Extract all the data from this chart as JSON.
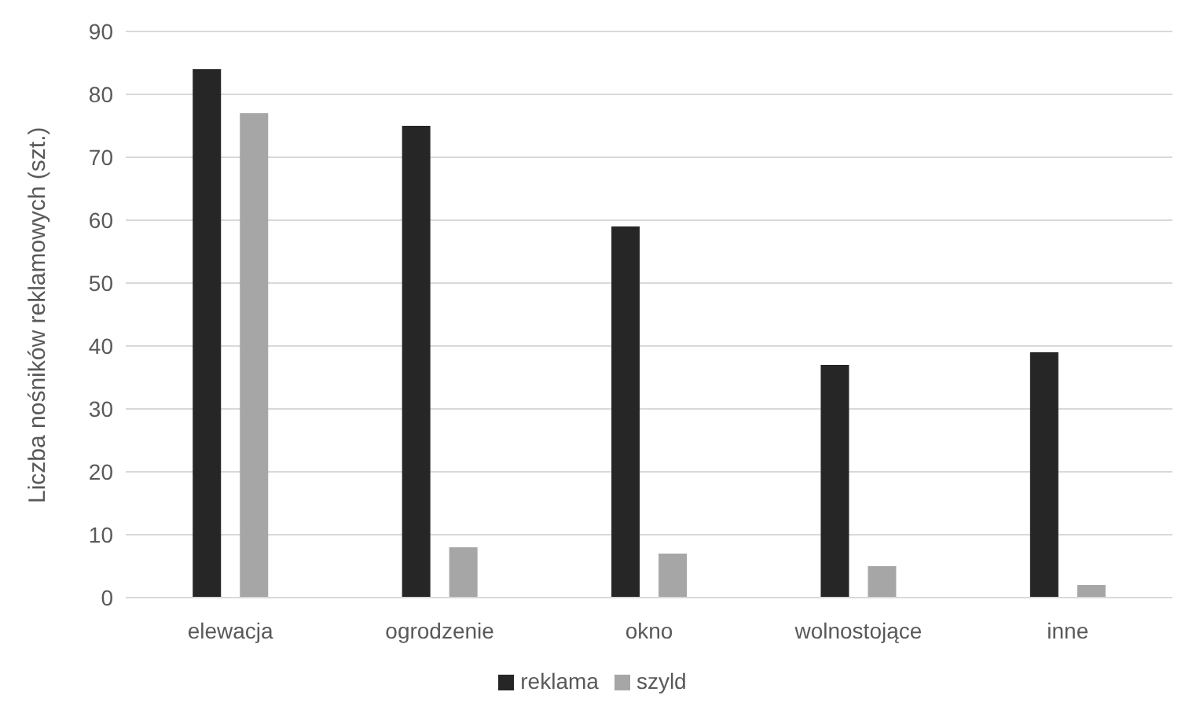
{
  "chart_data": {
    "type": "bar",
    "ylabel": "Liczba nośników reklamowych (szt.)",
    "categories": [
      "elewacja",
      "ogrodzenie",
      "okno",
      "wolnostojące",
      "inne"
    ],
    "series": [
      {
        "name": "reklama",
        "color": "#262626",
        "values": [
          84,
          75,
          59,
          37,
          39
        ]
      },
      {
        "name": "szyld",
        "color": "#a6a6a6",
        "values": [
          77,
          8,
          7,
          5,
          2
        ]
      }
    ],
    "ylim": [
      0,
      90
    ],
    "yticks": [
      0,
      10,
      20,
      30,
      40,
      50,
      60,
      70,
      80,
      90
    ],
    "grid": "y",
    "legend": "bottom"
  }
}
